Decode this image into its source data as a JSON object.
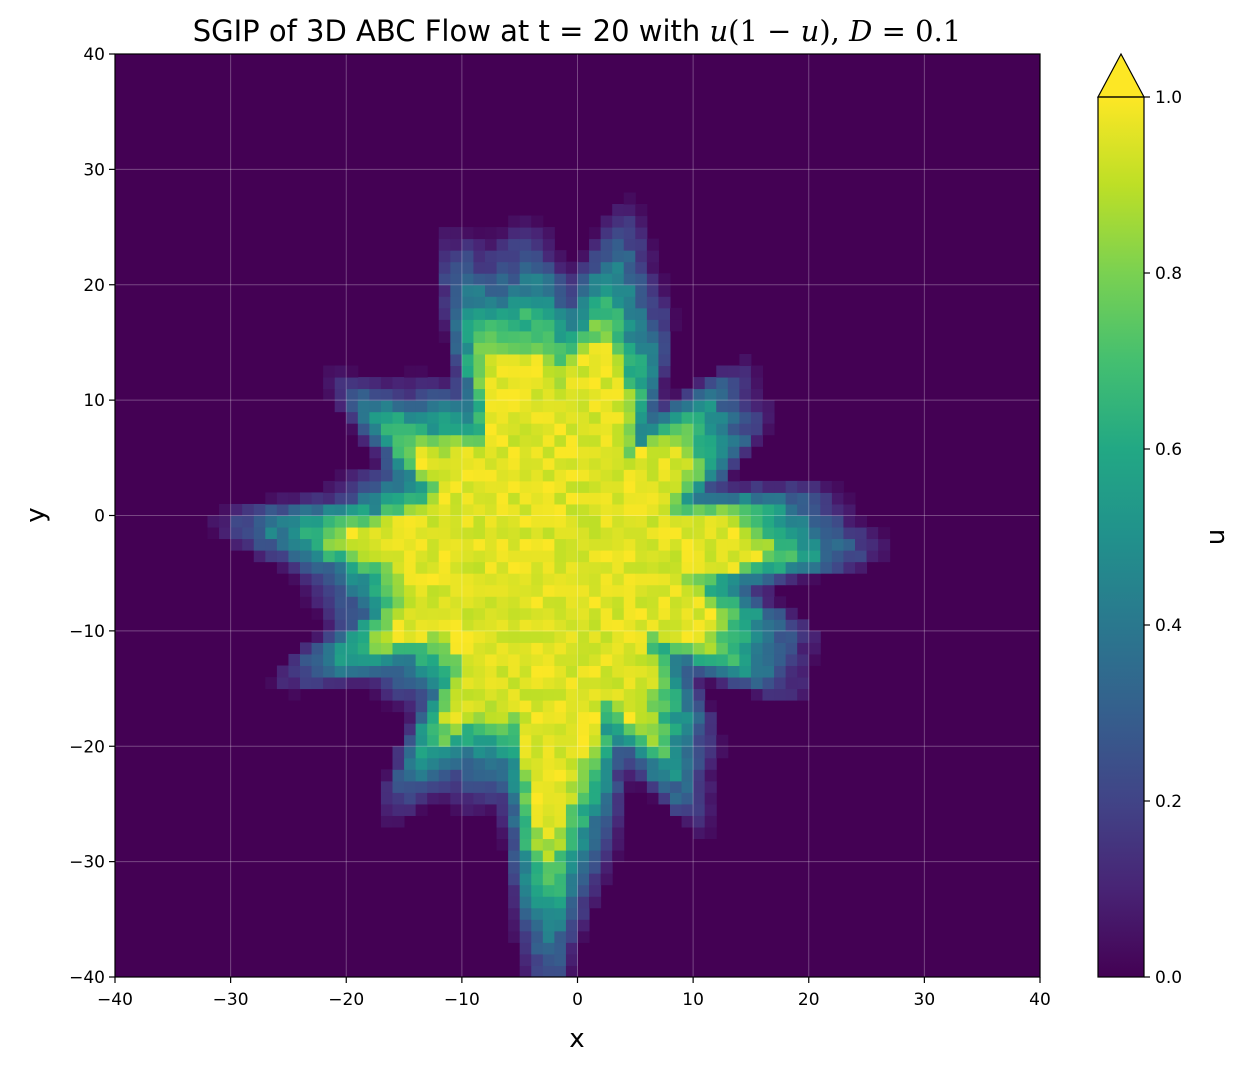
{
  "chart_data": {
    "type": "heatmap",
    "title": {
      "prefix": "SGIP of 3D ABC Flow at t = 20 with ",
      "math_u": "u",
      "math_open": "(1 − ",
      "math_u2": "u",
      "math_close": "), ",
      "math_D": "D",
      "math_eq": " = 0.1"
    },
    "xlabel": "x",
    "ylabel": "y",
    "xlim": [
      -40,
      40
    ],
    "ylim": [
      -40,
      40
    ],
    "x_ticks": [
      -40,
      -30,
      -20,
      -10,
      0,
      10,
      20,
      30,
      40
    ],
    "y_ticks": [
      -40,
      -30,
      -20,
      -10,
      0,
      10,
      20,
      30,
      40
    ],
    "x_tick_labels": [
      "−40",
      "−30",
      "−20",
      "−10",
      "0",
      "10",
      "20",
      "30",
      "40"
    ],
    "y_tick_labels": [
      "−40",
      "−30",
      "−20",
      "−10",
      "0",
      "10",
      "20",
      "30",
      "40"
    ],
    "grid": true,
    "colormap": "viridis",
    "colorbar": {
      "label": "u",
      "range": [
        0.0,
        1.0
      ],
      "ticks": [
        0.0,
        0.2,
        0.4,
        0.6,
        0.8,
        1.0
      ],
      "tick_labels": [
        "0.0",
        "0.2",
        "0.4",
        "0.6",
        "0.8",
        "1.0"
      ],
      "extend": "max"
    },
    "field": {
      "description_values": "u values on 80x80 grid, approximately 1.0 in a diamond-shaped core centered near (0,-5), decaying to 0 outside with fingered edges",
      "grid_n": 80,
      "core_center": [
        -2,
        -4
      ],
      "core_half_width_x": 22,
      "core_half_width_y": 28,
      "background_value": 0.0,
      "core_value": 1.0
    },
    "colors": {
      "viridis_0": "#440154",
      "viridis_1": "#fde725"
    }
  }
}
